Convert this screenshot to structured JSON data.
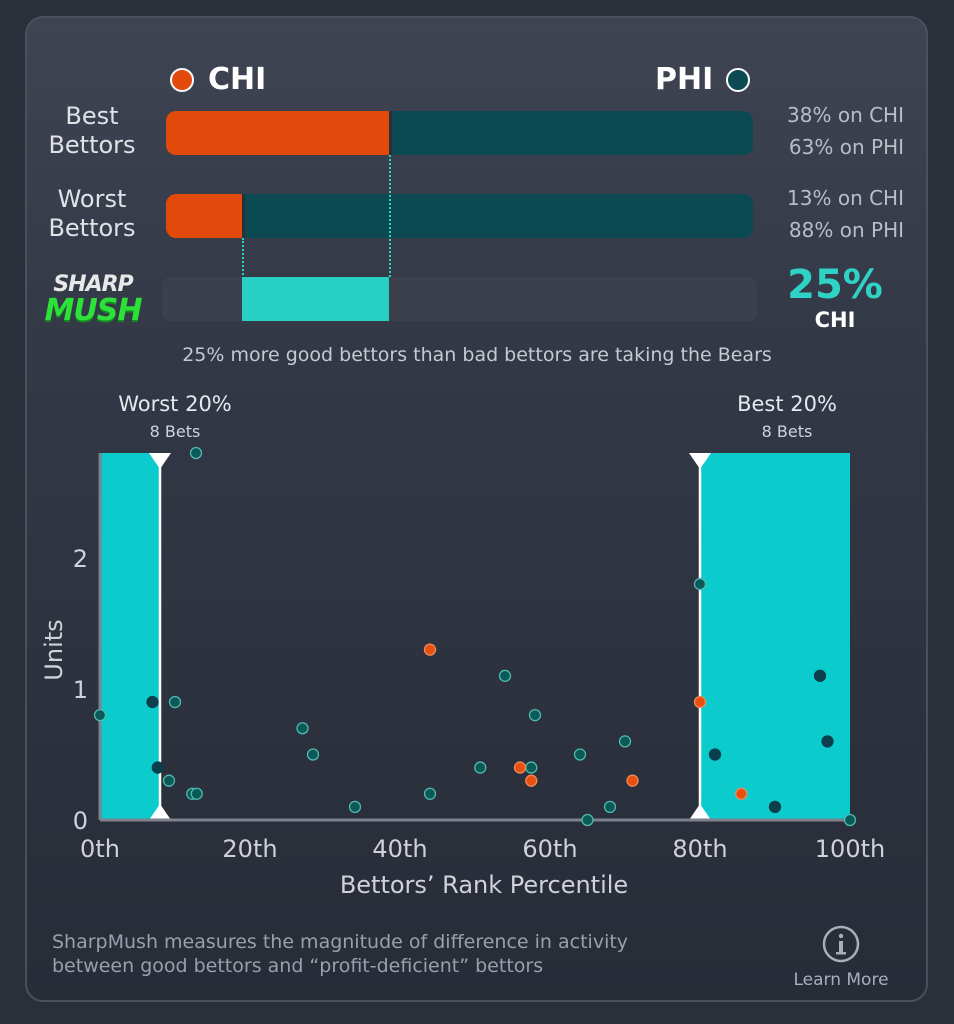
{
  "header": {
    "team_left": "CHI",
    "team_right": "PHI",
    "color_left": "#e24a0c",
    "color_right": "#0b4a52"
  },
  "rows": [
    {
      "label_line1": "Best",
      "label_line2": "Bettors",
      "left_pct": 38,
      "right_pct": 63,
      "left_text": "38% on CHI",
      "right_text": "63% on PHI"
    },
    {
      "label_line1": "Worst",
      "label_line2": "Bettors",
      "left_pct": 13,
      "right_pct": 88,
      "left_text": "13% on CHI",
      "right_text": "88% on PHI"
    }
  ],
  "logo": {
    "line1": "SHARP",
    "line2": "MUSH"
  },
  "sharpmush": {
    "value": "25%",
    "team": "CHI",
    "from_pct": 13,
    "to_pct": 38,
    "color": "#27d0c4"
  },
  "summary": "25% more good bettors than bad bettors are taking the Bears",
  "chart_data": {
    "type": "scatter",
    "xlabel": "Bettors’ Rank Percentile",
    "ylabel": "Units",
    "xlim": [
      0,
      100
    ],
    "ylim": [
      0,
      2.8
    ],
    "x_ticks": [
      "0th",
      "20th",
      "40th",
      "60th",
      "80th",
      "100th"
    ],
    "y_ticks": [
      "0",
      "1",
      "2"
    ],
    "regions": [
      {
        "label": "Worst 20%",
        "sublabel": "8 Bets",
        "from": 0,
        "to": 8
      },
      {
        "label": "Best 20%",
        "sublabel": "8 Bets",
        "from": 80,
        "to": 100
      }
    ],
    "highlight_color": "#0ccbcd",
    "series": [
      {
        "team": "PHI",
        "color": "#0b5a58",
        "points": [
          [
            0,
            0.8
          ],
          [
            7,
            0.9
          ],
          [
            10,
            0.9
          ],
          [
            7.7,
            0.4
          ],
          [
            9.2,
            0.3
          ],
          [
            12.3,
            0.2
          ],
          [
            12.9,
            0.2
          ],
          [
            12.8,
            2.8
          ],
          [
            27,
            0.7
          ],
          [
            28.4,
            0.5
          ],
          [
            34,
            0.1
          ],
          [
            44,
            0.2
          ],
          [
            50.7,
            0.4
          ],
          [
            54,
            1.1
          ],
          [
            57.5,
            0.4
          ],
          [
            58,
            0.8
          ],
          [
            64,
            0.5
          ],
          [
            65,
            0
          ],
          [
            68,
            0.1
          ],
          [
            70,
            0.6
          ],
          [
            80,
            1.8
          ],
          [
            82,
            0.5
          ],
          [
            90,
            0.1
          ],
          [
            96,
            1.1
          ],
          [
            97,
            0.6
          ],
          [
            100,
            0
          ]
        ]
      },
      {
        "team": "CHI",
        "color": "#e8500f",
        "points": [
          [
            44,
            1.3
          ],
          [
            56,
            0.4
          ],
          [
            57.5,
            0.3
          ],
          [
            71,
            0.3
          ],
          [
            80,
            0.9
          ],
          [
            85.5,
            0.2
          ]
        ]
      }
    ]
  },
  "footer": {
    "text_line1": "SharpMush measures the magnitude of difference in activity",
    "text_line2": "between good bettors and “profit-deficient” bettors",
    "learn_more": "Learn More"
  }
}
